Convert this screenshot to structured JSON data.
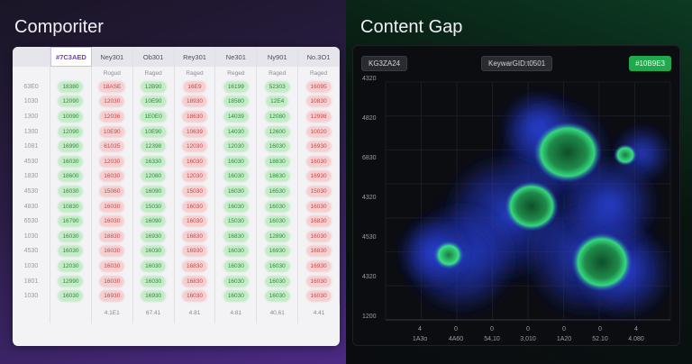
{
  "left": {
    "title": "Comporiter",
    "table": {
      "header": [
        "#7C3AED",
        "Ney301",
        "Ob301",
        "Rey301",
        "Ne301",
        "Ny901",
        "No.3O1"
      ],
      "subheader": [
        "",
        "Rogud",
        "Raged",
        "Raged",
        "Reged",
        "Raged",
        "Raged"
      ],
      "rows": [
        {
          "label": "63E0",
          "cells": [
            [
              "g",
              "18380"
            ],
            [
              "r",
              "18ASE"
            ],
            [
              "g",
              "12B90"
            ],
            [
              "r",
              "16E9"
            ],
            [
              "g",
              "16199"
            ],
            [
              "g",
              "52303"
            ],
            [
              "r",
              "16095"
            ]
          ]
        },
        {
          "label": "1030",
          "cells": [
            [
              "g",
              "12090"
            ],
            [
              "r",
              "12030"
            ],
            [
              "g",
              "10E90"
            ],
            [
              "r",
              "18930"
            ],
            [
              "g",
              "18580"
            ],
            [
              "g",
              "12E4"
            ],
            [
              "r",
              "10830"
            ]
          ]
        },
        {
          "label": "1300",
          "cells": [
            [
              "g",
              "10090"
            ],
            [
              "r",
              "12036"
            ],
            [
              "g",
              "1E0E0"
            ],
            [
              "r",
              "18630"
            ],
            [
              "g",
              "14039"
            ],
            [
              "g",
              "12080"
            ],
            [
              "r",
              "12998"
            ]
          ]
        },
        {
          "label": "1300",
          "cells": [
            [
              "g",
              "12090"
            ],
            [
              "r",
              "10E90"
            ],
            [
              "g",
              "10E90"
            ],
            [
              "r",
              "10639"
            ],
            [
              "g",
              "14030"
            ],
            [
              "g",
              "12600"
            ],
            [
              "r",
              "10020"
            ]
          ]
        },
        {
          "label": "1081",
          "cells": [
            [
              "g",
              "16990"
            ],
            [
              "r",
              "61035"
            ],
            [
              "g",
              "12398"
            ],
            [
              "r",
              "12030"
            ],
            [
              "g",
              "12030"
            ],
            [
              "g",
              "16030"
            ],
            [
              "r",
              "16930"
            ]
          ]
        },
        {
          "label": "4530",
          "cells": [
            [
              "g",
              "16030"
            ],
            [
              "r",
              "12030"
            ],
            [
              "g",
              "16330"
            ],
            [
              "r",
              "16030"
            ],
            [
              "g",
              "16030"
            ],
            [
              "g",
              "18830"
            ],
            [
              "r",
              "16030"
            ]
          ]
        },
        {
          "label": "1830",
          "cells": [
            [
              "g",
              "18600"
            ],
            [
              "r",
              "16030"
            ],
            [
              "g",
              "12080"
            ],
            [
              "r",
              "12030"
            ],
            [
              "g",
              "16030"
            ],
            [
              "g",
              "18630"
            ],
            [
              "r",
              "16930"
            ]
          ]
        },
        {
          "label": "4530",
          "cells": [
            [
              "g",
              "16030"
            ],
            [
              "r",
              "15060"
            ],
            [
              "g",
              "16090"
            ],
            [
              "r",
              "15030"
            ],
            [
              "g",
              "16030"
            ],
            [
              "g",
              "16530"
            ],
            [
              "r",
              "15030"
            ]
          ]
        },
        {
          "label": "4830",
          "cells": [
            [
              "g",
              "10830"
            ],
            [
              "r",
              "16030"
            ],
            [
              "g",
              "15030"
            ],
            [
              "r",
              "16030"
            ],
            [
              "g",
              "16030"
            ],
            [
              "g",
              "16030"
            ],
            [
              "r",
              "16030"
            ]
          ]
        },
        {
          "label": "6530",
          "cells": [
            [
              "g",
              "16790"
            ],
            [
              "r",
              "16030"
            ],
            [
              "g",
              "16090"
            ],
            [
              "r",
              "16030"
            ],
            [
              "g",
              "15030"
            ],
            [
              "g",
              "16030"
            ],
            [
              "r",
              "16830"
            ]
          ]
        },
        {
          "label": "1030",
          "cells": [
            [
              "g",
              "16030"
            ],
            [
              "r",
              "18830"
            ],
            [
              "g",
              "16930"
            ],
            [
              "r",
              "16830"
            ],
            [
              "g",
              "16830"
            ],
            [
              "g",
              "12890"
            ],
            [
              "r",
              "16030"
            ]
          ]
        },
        {
          "label": "4530",
          "cells": [
            [
              "g",
              "16030"
            ],
            [
              "r",
              "16030"
            ],
            [
              "g",
              "16030"
            ],
            [
              "r",
              "16930"
            ],
            [
              "g",
              "16030"
            ],
            [
              "g",
              "16930"
            ],
            [
              "r",
              "16830"
            ]
          ]
        },
        {
          "label": "1030",
          "cells": [
            [
              "g",
              "12030"
            ],
            [
              "r",
              "16030"
            ],
            [
              "g",
              "16030"
            ],
            [
              "r",
              "16830"
            ],
            [
              "g",
              "16030"
            ],
            [
              "g",
              "16030"
            ],
            [
              "r",
              "16930"
            ]
          ]
        },
        {
          "label": "1801",
          "cells": [
            [
              "g",
              "12990"
            ],
            [
              "r",
              "16030"
            ],
            [
              "g",
              "16030"
            ],
            [
              "r",
              "16830"
            ],
            [
              "g",
              "16030"
            ],
            [
              "g",
              "16030"
            ],
            [
              "r",
              "16030"
            ]
          ]
        },
        {
          "label": "1030",
          "cells": [
            [
              "g",
              "16030"
            ],
            [
              "r",
              "16930"
            ],
            [
              "g",
              "16930"
            ],
            [
              "r",
              "16030"
            ],
            [
              "g",
              "16030"
            ],
            [
              "g",
              "16030"
            ],
            [
              "r",
              "16030"
            ]
          ]
        }
      ],
      "footer": [
        "",
        "4.1E1",
        "67.41",
        "4.81",
        "4.81",
        "40.61",
        "4.41"
      ]
    }
  },
  "right": {
    "title": "Content Gap",
    "chips": {
      "left": "KG3ZA24",
      "mid": "KeywarGID:t0501",
      "right": "#10B9E3"
    },
    "y_ticks": [
      "4320",
      "4820",
      "6830",
      "4320",
      "4530",
      "4320",
      "1200"
    ],
    "x_ticks": [
      {
        "top": "4",
        "bottom": "1A3o"
      },
      {
        "top": "0",
        "bottom": "4A60"
      },
      {
        "top": "0",
        "bottom": "54,10"
      },
      {
        "top": "0",
        "bottom": "3,010"
      },
      {
        "top": "0",
        "bottom": "1A20"
      },
      {
        "top": "0",
        "bottom": "52.10"
      },
      {
        "top": "4",
        "bottom": "4.080"
      }
    ],
    "colors": {
      "accent": "#22a84c",
      "blue": "#2a3fd8",
      "green": "#2fe07a"
    }
  }
}
